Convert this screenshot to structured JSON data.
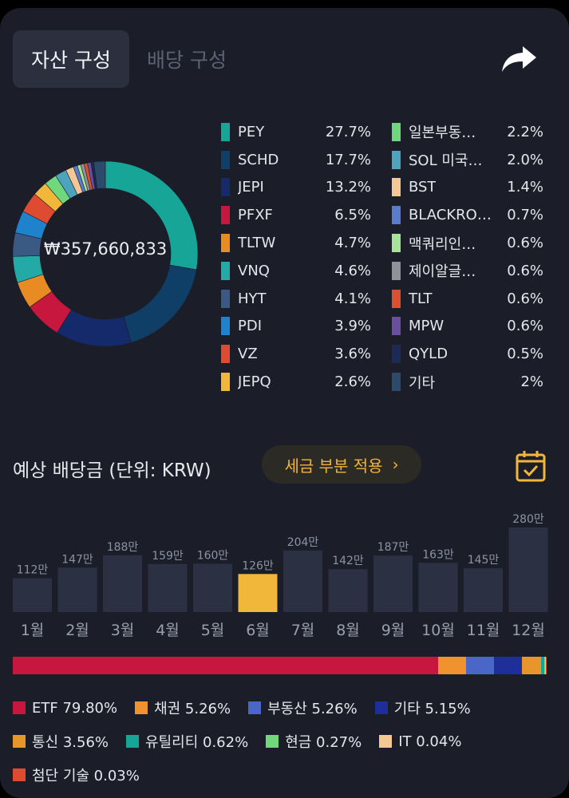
{
  "tabs": {
    "active": "자산 구성",
    "inactive": "배당 구성"
  },
  "donut": {
    "total": "₩357,660,833"
  },
  "holdings": [
    {
      "name": "PEY",
      "pct": "27.7%",
      "value": 27.7,
      "color": "#16a596"
    },
    {
      "name": "SCHD",
      "pct": "17.7%",
      "value": 17.7,
      "color": "#0f3f66"
    },
    {
      "name": "JEPI",
      "pct": "13.2%",
      "value": 13.2,
      "color": "#152a6b"
    },
    {
      "name": "PFXF",
      "pct": "6.5%",
      "value": 6.5,
      "color": "#c8173e"
    },
    {
      "name": "TLTW",
      "pct": "4.7%",
      "value": 4.7,
      "color": "#e88b22"
    },
    {
      "name": "VNQ",
      "pct": "4.6%",
      "value": 4.6,
      "color": "#23a9a6"
    },
    {
      "name": "HYT",
      "pct": "4.1%",
      "value": 4.1,
      "color": "#3a5a84"
    },
    {
      "name": "PDI",
      "pct": "3.9%",
      "value": 3.9,
      "color": "#1f82cc"
    },
    {
      "name": "VZ",
      "pct": "3.6%",
      "value": 3.6,
      "color": "#df4b31"
    },
    {
      "name": "JEPQ",
      "pct": "2.6%",
      "value": 2.6,
      "color": "#f1b73a"
    },
    {
      "name": "일본부동…",
      "pct": "2.2%",
      "value": 2.2,
      "color": "#6fd77c"
    },
    {
      "name": "SOL 미국…",
      "pct": "2.0%",
      "value": 2.0,
      "color": "#4ea3bd"
    },
    {
      "name": "BST",
      "pct": "1.4%",
      "value": 1.4,
      "color": "#f5c794"
    },
    {
      "name": "BLACKRO…",
      "pct": "0.7%",
      "value": 0.7,
      "color": "#5b7ccd"
    },
    {
      "name": "맥쿼리인…",
      "pct": "0.6%",
      "value": 0.6,
      "color": "#a8e39a"
    },
    {
      "name": "제이알글…",
      "pct": "0.6%",
      "value": 0.6,
      "color": "#8f9298"
    },
    {
      "name": "TLT",
      "pct": "0.6%",
      "value": 0.6,
      "color": "#d9512f"
    },
    {
      "name": "MPW",
      "pct": "0.6%",
      "value": 0.6,
      "color": "#6a4ea0"
    },
    {
      "name": "QYLD",
      "pct": "0.5%",
      "value": 0.5,
      "color": "#1c2a58"
    },
    {
      "name": "기타",
      "pct": "2%",
      "value": 2.0,
      "color": "#2e4a6b"
    }
  ],
  "dividend": {
    "title": "예상 배당금 (단위: KRW)",
    "tax_button": "세금 부분 적용",
    "tax_chevron": "›",
    "calendar_icon": "calendar-check-icon",
    "share_icon": "share-arrow-icon"
  },
  "chart_data": {
    "type": "bar",
    "categories": [
      "1월",
      "2월",
      "3월",
      "4월",
      "5월",
      "6월",
      "7월",
      "8월",
      "9월",
      "10월",
      "11월",
      "12월"
    ],
    "values": [
      112,
      147,
      188,
      159,
      160,
      126,
      204,
      142,
      187,
      163,
      145,
      280
    ],
    "labels": [
      "112만",
      "147만",
      "188만",
      "159만",
      "160만",
      "126만",
      "204만",
      "142만",
      "187만",
      "163만",
      "145만",
      "280만"
    ],
    "highlight_index": 5,
    "colors": {
      "bar": "#2b3142",
      "highlight": "#f1b73a"
    },
    "title": "",
    "xlabel": "",
    "ylabel": ""
  },
  "categories": [
    {
      "name": "ETF",
      "pct": "79.80%",
      "value": 79.8,
      "color": "#c8173e"
    },
    {
      "name": "채권",
      "pct": "5.26%",
      "value": 5.26,
      "color": "#f0932f"
    },
    {
      "name": "부동산",
      "pct": "5.26%",
      "value": 5.26,
      "color": "#4a67c7"
    },
    {
      "name": "기타",
      "pct": "5.15%",
      "value": 5.15,
      "color": "#1e2f9a"
    },
    {
      "name": "통신",
      "pct": "3.56%",
      "value": 3.56,
      "color": "#e8952c"
    },
    {
      "name": "유틸리티",
      "pct": "0.62%",
      "value": 0.62,
      "color": "#16a596"
    },
    {
      "name": "현금",
      "pct": "0.27%",
      "value": 0.27,
      "color": "#6fd77c"
    },
    {
      "name": "IT",
      "pct": "0.04%",
      "value": 0.04,
      "color": "#f5c794"
    },
    {
      "name": "첨단 기술",
      "pct": "0.03%",
      "value": 0.03,
      "color": "#df4b31"
    }
  ]
}
